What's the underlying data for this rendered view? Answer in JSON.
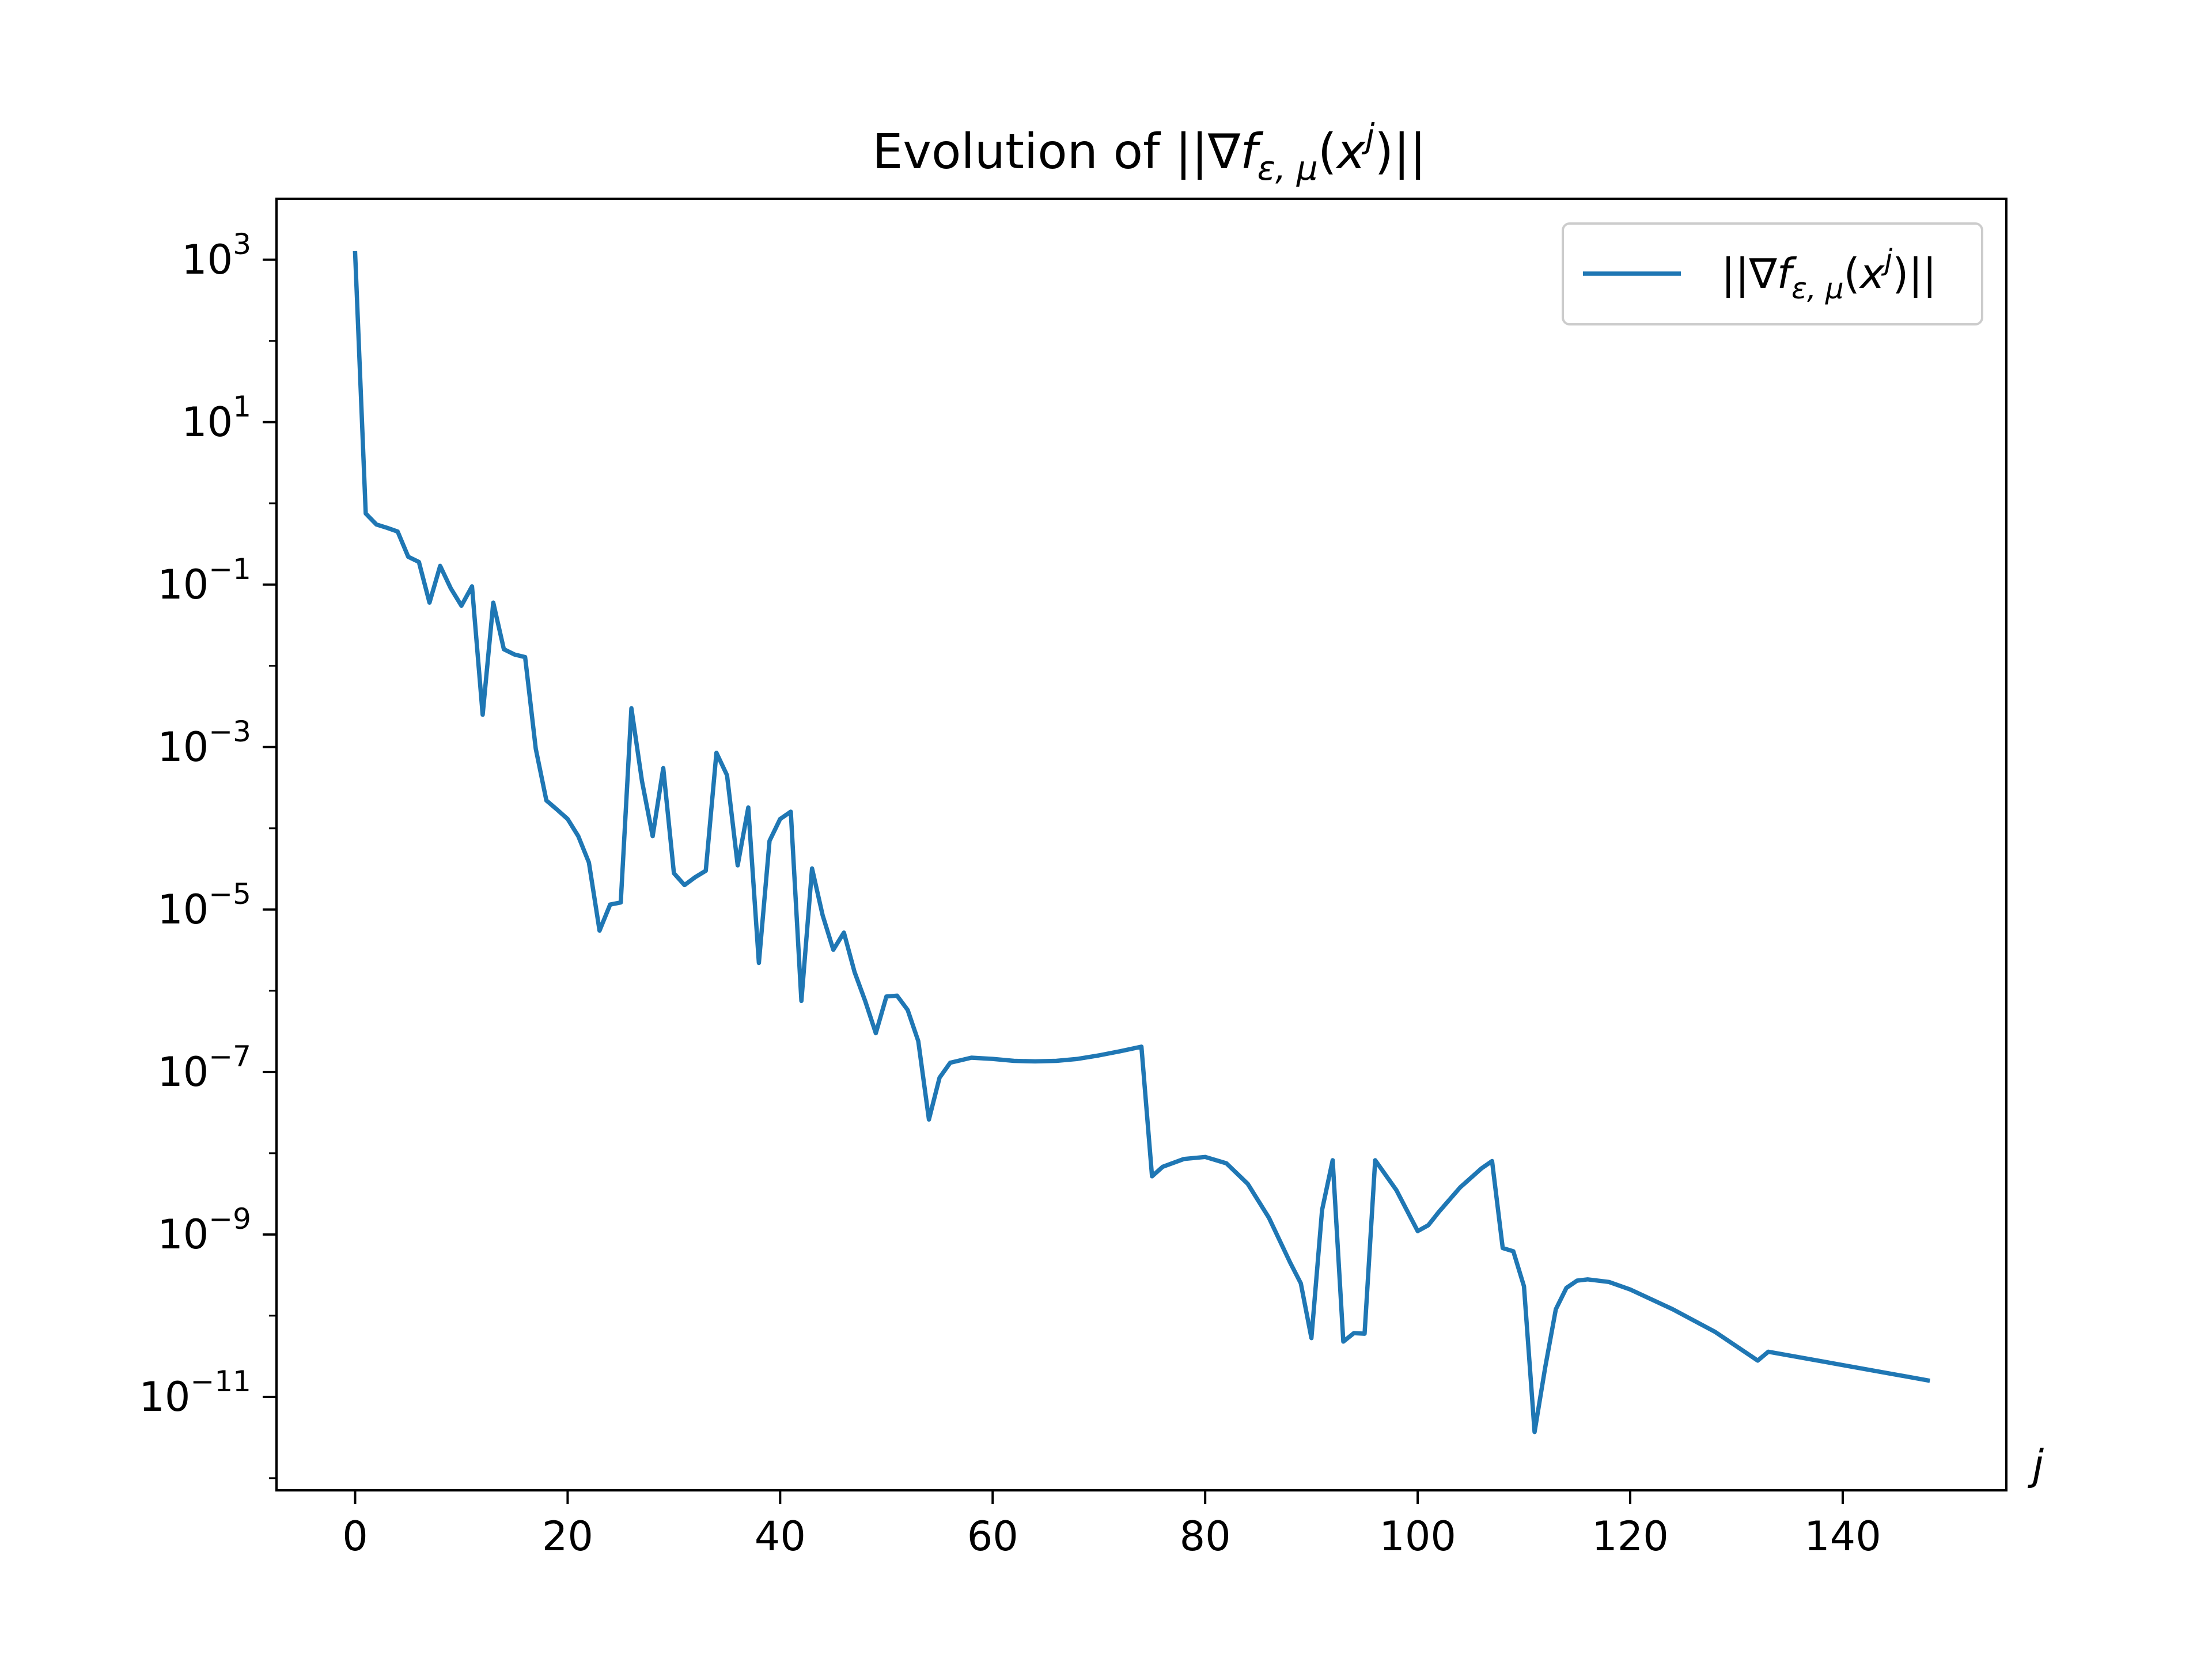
{
  "chart_data": {
    "type": "line",
    "title": "Evolution of ||∇f_{ε,μ}(x^j)||",
    "title_parts": {
      "pre": "Evolution of ||∇",
      "f": "f",
      "sub": "ε, μ",
      "open": "(",
      "x": "x",
      "sup": "j",
      "post": ")||"
    },
    "xlabel": "j",
    "ylabel": "",
    "yscale": "log",
    "xlim": [
      -7.4,
      155.4
    ],
    "ylim_log10": [
      -12.15,
      3.75
    ],
    "grid": false,
    "legend_position": "top-right",
    "xticks": [
      0,
      20,
      40,
      60,
      80,
      100,
      120,
      140
    ],
    "xtick_labels": [
      "0",
      "20",
      "40",
      "60",
      "80",
      "100",
      "120",
      "140"
    ],
    "yticks_log10": [
      3,
      1,
      -1,
      -3,
      -5,
      -7,
      -9,
      -11
    ],
    "ytick_labels": [
      {
        "base": "10",
        "exp": "3"
      },
      {
        "base": "10",
        "exp": "1"
      },
      {
        "base": "10",
        "exp": "−1"
      },
      {
        "base": "10",
        "exp": "−3"
      },
      {
        "base": "10",
        "exp": "−5"
      },
      {
        "base": "10",
        "exp": "−7"
      },
      {
        "base": "10",
        "exp": "−9"
      },
      {
        "base": "10",
        "exp": "−11"
      }
    ],
    "series": [
      {
        "name": "||∇f_{ε,μ}(x^j)||",
        "name_parts": {
          "pre": "||∇",
          "f": "f",
          "sub": "ε, μ",
          "open": "(",
          "x": "x",
          "sup": "j",
          "post": ")||"
        },
        "color": "#1f77b4",
        "x": [
          0,
          1,
          2,
          3,
          4,
          5,
          6,
          7,
          8,
          9,
          10,
          11,
          12,
          13,
          14,
          15,
          16,
          17,
          18,
          19,
          20,
          21,
          22,
          23,
          24,
          25,
          26,
          27,
          28,
          29,
          30,
          31,
          32,
          33,
          34,
          35,
          36,
          37,
          38,
          39,
          40,
          41,
          42,
          43,
          44,
          45,
          46,
          47,
          48,
          49,
          50,
          51,
          52,
          53,
          54,
          55,
          56,
          58,
          60,
          62,
          64,
          66,
          68,
          70,
          72,
          74,
          75,
          76,
          78,
          80,
          82,
          84,
          86,
          88,
          89,
          90,
          91,
          92,
          93,
          94,
          95,
          96,
          98,
          100,
          101,
          102,
          104,
          106,
          107,
          108,
          109,
          110,
          111,
          112,
          113,
          114,
          115,
          116,
          118,
          120,
          124,
          128,
          132,
          133,
          148
        ],
        "y": [
          1200.0,
          0.75,
          0.55,
          0.5,
          0.45,
          0.22,
          0.19,
          0.06,
          0.17,
          0.09,
          0.055,
          0.095,
          0.0025,
          0.06,
          0.016,
          0.0138,
          0.0128,
          0.00095,
          0.00022,
          0.00017,
          0.00013,
          8e-05,
          3.8e-05,
          5.5e-06,
          1.15e-05,
          1.22e-05,
          0.003,
          0.00038,
          8e-05,
          0.00055,
          2.8e-05,
          2e-05,
          2.5e-05,
          3e-05,
          0.00085,
          0.00045,
          3.5e-05,
          0.00018,
          2.2e-06,
          7e-05,
          0.00013,
          0.00016,
          7.5e-07,
          3.2e-05,
          8.5e-06,
          3.2e-06,
          5.2e-06,
          1.7e-06,
          7.5e-07,
          3e-07,
          8.5e-07,
          8.7e-07,
          5.8e-07,
          2.4e-07,
          2.6e-08,
          8.5e-08,
          1.3e-07,
          1.5e-07,
          1.45e-07,
          1.37e-07,
          1.35e-07,
          1.37e-07,
          1.45e-07,
          1.6e-07,
          1.8e-07,
          2.05e-07,
          5.2e-09,
          6.8e-09,
          8.5e-09,
          9e-09,
          7.5e-09,
          4.2e-09,
          1.6e-09,
          4.5e-10,
          2.5e-10,
          5.3e-11,
          2e-09,
          8.2e-09,
          4.8e-11,
          6.1e-11,
          6e-11,
          8.2e-09,
          3.5e-09,
          1.1e-09,
          1.3e-09,
          1.9e-09,
          3.8e-09,
          6.5e-09,
          8e-09,
          6.8e-10,
          6.2e-10,
          2.3e-10,
          3.7e-12,
          2.3e-11,
          1.2e-10,
          2.2e-10,
          2.7e-10,
          2.8e-10,
          2.6e-10,
          2.1e-10,
          1.2e-10,
          6.3e-11,
          2.8e-11,
          3.6e-11,
          1.6e-11
        ]
      }
    ]
  }
}
